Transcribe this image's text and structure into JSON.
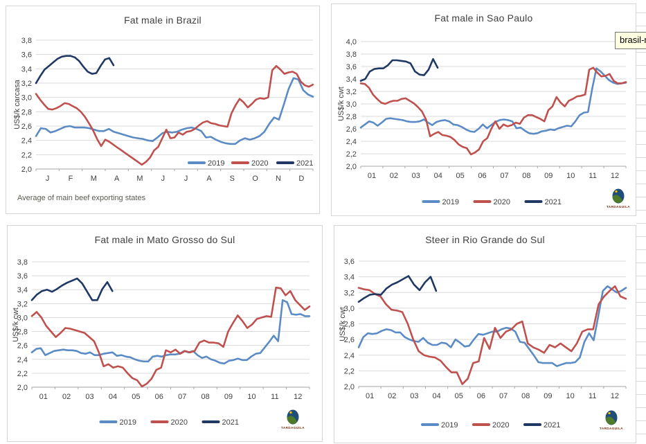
{
  "tooltip": {
    "text": "brasil-m",
    "bg": "#FFFFE1",
    "border": "#767676"
  },
  "logo": {
    "text": "TARDAGUILA"
  },
  "colors": {
    "s2019": "#5b8bc4",
    "s2020": "#c0504d",
    "s2021": "#1f3864",
    "grid": "#d9d9d9",
    "axis": "#a6a6a6",
    "tick_text": "#3f3f3f",
    "title_text": "#3f3f3f",
    "logo_text": "#7f2a0c"
  },
  "chart_data": [
    {
      "type": "line",
      "title": "Fat male in Brazil",
      "ylabel": "US$/k carcasa",
      "footnote": "Average of main beef exporting states",
      "ylim": [
        2.0,
        3.8
      ],
      "ytick_step": 0.2,
      "grid": true,
      "legend_position": "inside-right",
      "show_logo": false,
      "x_labels": [
        "J",
        "F",
        "M",
        "A",
        "M",
        "J",
        "J",
        "A",
        "S",
        "O",
        "N",
        "D"
      ],
      "series": [
        {
          "name": "2019",
          "color_key": "s2019",
          "end_frac": 1,
          "values": [
            2.46,
            2.57,
            2.56,
            2.51,
            2.53,
            2.56,
            2.59,
            2.6,
            2.58,
            2.58,
            2.58,
            2.57,
            2.55,
            2.53,
            2.53,
            2.56,
            2.52,
            2.5,
            2.48,
            2.46,
            2.44,
            2.43,
            2.42,
            2.4,
            2.39,
            2.44,
            2.5,
            2.52,
            2.51,
            2.52,
            2.55,
            2.57,
            2.58,
            2.56,
            2.53,
            2.44,
            2.45,
            2.41,
            2.38,
            2.36,
            2.35,
            2.35,
            2.4,
            2.43,
            2.41,
            2.43,
            2.46,
            2.52,
            2.63,
            2.72,
            2.69,
            2.9,
            3.12,
            3.27,
            3.25,
            3.1,
            3.04,
            3.01
          ]
        },
        {
          "name": "2020",
          "color_key": "s2020",
          "end_frac": 1,
          "values": [
            3.05,
            2.97,
            2.9,
            2.84,
            2.83,
            2.85,
            2.88,
            2.92,
            2.91,
            2.88,
            2.85,
            2.8,
            2.73,
            2.64,
            2.54,
            2.42,
            2.32,
            2.41,
            2.38,
            2.34,
            2.3,
            2.26,
            2.22,
            2.18,
            2.14,
            2.1,
            2.06,
            2.1,
            2.16,
            2.26,
            2.31,
            2.43,
            2.55,
            2.43,
            2.44,
            2.51,
            2.48,
            2.52,
            2.53,
            2.56,
            2.61,
            2.65,
            2.67,
            2.64,
            2.63,
            2.61,
            2.6,
            2.59,
            2.78,
            2.89,
            2.98,
            2.93,
            2.86,
            2.91,
            2.97,
            2.99,
            2.98,
            3.0,
            3.38,
            3.44,
            3.39,
            3.33,
            3.35,
            3.36,
            3.33,
            3.22,
            3.17,
            3.15,
            3.18
          ]
        },
        {
          "name": "2021",
          "color_key": "s2021",
          "end_frac": 0.28,
          "values": [
            3.2,
            3.3,
            3.39,
            3.44,
            3.49,
            3.54,
            3.57,
            3.58,
            3.58,
            3.56,
            3.51,
            3.43,
            3.36,
            3.33,
            3.34,
            3.44,
            3.53,
            3.55,
            3.45
          ]
        }
      ]
    },
    {
      "type": "line",
      "title": "Fat male in Sao Paulo",
      "ylabel": "US$/k cwt",
      "ylim": [
        2.0,
        4.0
      ],
      "ytick_step": 0.2,
      "grid": true,
      "legend_position": "bottom",
      "show_logo": true,
      "x_labels": [
        "01",
        "02",
        "03",
        "04",
        "05",
        "06",
        "07",
        "08",
        "09",
        "10",
        "11",
        "12"
      ],
      "series": [
        {
          "name": "2019",
          "color_key": "s2019",
          "end_frac": 1,
          "values": [
            2.62,
            2.67,
            2.72,
            2.7,
            2.65,
            2.7,
            2.76,
            2.77,
            2.76,
            2.75,
            2.74,
            2.72,
            2.71,
            2.71,
            2.72,
            2.75,
            2.7,
            2.66,
            2.71,
            2.73,
            2.74,
            2.72,
            2.67,
            2.66,
            2.63,
            2.59,
            2.56,
            2.55,
            2.6,
            2.67,
            2.61,
            2.66,
            2.71,
            2.74,
            2.75,
            2.74,
            2.72,
            2.61,
            2.62,
            2.57,
            2.53,
            2.52,
            2.53,
            2.56,
            2.57,
            2.59,
            2.58,
            2.61,
            2.63,
            2.65,
            2.64,
            2.72,
            2.82,
            2.86,
            2.87,
            3.25,
            3.57,
            3.52,
            3.45,
            3.38,
            3.34,
            3.32,
            3.33,
            3.34
          ]
        },
        {
          "name": "2020",
          "color_key": "s2020",
          "end_frac": 1,
          "values": [
            3.33,
            3.32,
            3.26,
            3.15,
            3.08,
            3.02,
            3.0,
            3.03,
            3.05,
            3.05,
            3.08,
            3.09,
            3.05,
            3.01,
            2.95,
            2.88,
            2.75,
            2.48,
            2.52,
            2.55,
            2.5,
            2.49,
            2.47,
            2.42,
            2.35,
            2.31,
            2.29,
            2.19,
            2.22,
            2.27,
            2.4,
            2.45,
            2.6,
            2.72,
            2.6,
            2.67,
            2.64,
            2.66,
            2.7,
            2.68,
            2.78,
            2.82,
            2.82,
            2.79,
            2.76,
            2.72,
            2.9,
            2.96,
            3.11,
            3.02,
            2.96,
            3.05,
            3.08,
            3.12,
            3.13,
            3.15,
            3.55,
            3.58,
            3.5,
            3.44,
            3.45,
            3.48,
            3.37,
            3.33,
            3.33,
            3.35
          ]
        },
        {
          "name": "2021",
          "color_key": "s2021",
          "end_frac": 0.29,
          "values": [
            3.37,
            3.4,
            3.52,
            3.56,
            3.57,
            3.57,
            3.62,
            3.7,
            3.7,
            3.69,
            3.68,
            3.65,
            3.52,
            3.47,
            3.46,
            3.55,
            3.72,
            3.58
          ]
        }
      ]
    },
    {
      "type": "line",
      "title": "Fat male in Mato Grosso do Sul",
      "ylabel": "US$/k cwt",
      "ylim": [
        2.0,
        3.8
      ],
      "ytick_step": 0.2,
      "grid": true,
      "legend_position": "bottom",
      "show_logo": true,
      "x_labels": [
        "01",
        "02",
        "03",
        "04",
        "05",
        "06",
        "07",
        "08",
        "09",
        "10",
        "11",
        "12"
      ],
      "series": [
        {
          "name": "2019",
          "color_key": "s2019",
          "end_frac": 1,
          "values": [
            2.5,
            2.55,
            2.56,
            2.46,
            2.49,
            2.52,
            2.53,
            2.54,
            2.53,
            2.53,
            2.52,
            2.49,
            2.48,
            2.5,
            2.46,
            2.46,
            2.48,
            2.49,
            2.5,
            2.45,
            2.46,
            2.44,
            2.43,
            2.4,
            2.38,
            2.37,
            2.37,
            2.44,
            2.45,
            2.44,
            2.46,
            2.47,
            2.47,
            2.48,
            2.52,
            2.5,
            2.52,
            2.46,
            2.42,
            2.44,
            2.4,
            2.38,
            2.35,
            2.34,
            2.38,
            2.39,
            2.41,
            2.39,
            2.39,
            2.44,
            2.48,
            2.49,
            2.57,
            2.65,
            2.74,
            2.66,
            3.25,
            3.22,
            3.05,
            3.04,
            3.05,
            3.02,
            3.02
          ]
        },
        {
          "name": "2020",
          "color_key": "s2020",
          "end_frac": 1,
          "values": [
            3.02,
            3.08,
            3.0,
            2.88,
            2.8,
            2.72,
            2.78,
            2.85,
            2.84,
            2.82,
            2.8,
            2.78,
            2.72,
            2.66,
            2.5,
            2.3,
            2.33,
            2.28,
            2.3,
            2.28,
            2.2,
            2.13,
            2.1,
            2.01,
            2.05,
            2.12,
            2.25,
            2.28,
            2.53,
            2.5,
            2.54,
            2.48,
            2.52,
            2.5,
            2.52,
            2.64,
            2.67,
            2.64,
            2.64,
            2.63,
            2.58,
            2.8,
            2.92,
            3.03,
            2.95,
            2.85,
            2.9,
            2.98,
            3.0,
            3.02,
            3.01,
            3.43,
            3.42,
            3.32,
            3.38,
            3.25,
            3.18,
            3.11,
            3.16
          ]
        },
        {
          "name": "2021",
          "color_key": "s2021",
          "end_frac": 0.29,
          "values": [
            3.25,
            3.33,
            3.38,
            3.4,
            3.37,
            3.41,
            3.46,
            3.5,
            3.53,
            3.56,
            3.49,
            3.37,
            3.25,
            3.25,
            3.41,
            3.51,
            3.38
          ]
        }
      ]
    },
    {
      "type": "line",
      "title": "Steer in Rio Grande do Sul",
      "ylabel": "US$/k cwt",
      "ylim": [
        2.0,
        3.6
      ],
      "ytick_step": 0.2,
      "grid": true,
      "legend_position": "bottom",
      "show_logo": true,
      "x_labels": [
        "01",
        "02",
        "03",
        "04",
        "05",
        "06",
        "07",
        "08",
        "09",
        "10",
        "11",
        "12"
      ],
      "series": [
        {
          "name": "2019",
          "color_key": "s2019",
          "end_frac": 1,
          "values": [
            2.5,
            2.63,
            2.68,
            2.67,
            2.68,
            2.71,
            2.73,
            2.72,
            2.69,
            2.69,
            2.63,
            2.6,
            2.58,
            2.57,
            2.62,
            2.56,
            2.53,
            2.53,
            2.56,
            2.55,
            2.5,
            2.6,
            2.56,
            2.51,
            2.52,
            2.6,
            2.67,
            2.66,
            2.68,
            2.7,
            2.7,
            2.73,
            2.75,
            2.74,
            2.7,
            2.57,
            2.56,
            2.48,
            2.4,
            2.31,
            2.3,
            2.3,
            2.3,
            2.26,
            2.28,
            2.3,
            2.3,
            2.31,
            2.37,
            2.57,
            2.68,
            2.59,
            2.9,
            3.22,
            3.28,
            3.24,
            3.2,
            3.22,
            3.26
          ]
        },
        {
          "name": "2020",
          "color_key": "s2020",
          "end_frac": 1,
          "values": [
            3.26,
            3.24,
            3.23,
            3.18,
            3.15,
            3.05,
            2.98,
            2.97,
            2.95,
            2.8,
            2.6,
            2.45,
            2.4,
            2.38,
            2.37,
            2.33,
            2.25,
            2.18,
            2.18,
            2.03,
            2.1,
            2.3,
            2.32,
            2.62,
            2.48,
            2.75,
            2.62,
            2.7,
            2.73,
            2.8,
            2.83,
            2.55,
            2.5,
            2.47,
            2.43,
            2.53,
            2.5,
            2.55,
            2.5,
            2.45,
            2.55,
            2.7,
            2.73,
            2.73,
            3.05,
            3.15,
            3.22,
            3.28,
            3.15,
            3.12
          ]
        },
        {
          "name": "2021",
          "color_key": "s2021",
          "end_frac": 0.29,
          "values": [
            3.08,
            3.13,
            3.17,
            3.18,
            3.17,
            3.25,
            3.3,
            3.33,
            3.37,
            3.41,
            3.3,
            3.23,
            3.33,
            3.4,
            3.22
          ]
        }
      ]
    }
  ]
}
